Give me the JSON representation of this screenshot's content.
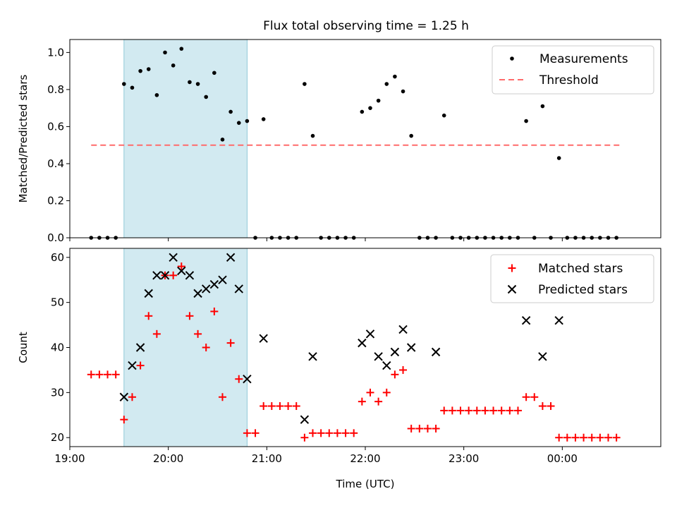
{
  "title": "Flux total observing time = 1.25 h",
  "colors": {
    "shade": "#add8e6",
    "threshold": "#ff6b6b",
    "matched": "#ff0000",
    "predicted": "#000000",
    "measurement": "#000000"
  },
  "chart_data": [
    {
      "type": "scatter",
      "ylabel": "Matched/Predicted stars",
      "xlim": [
        19.0,
        1.0
      ],
      "ylim": [
        0,
        1.07
      ],
      "yticks": [
        "0.0",
        "0.2",
        "0.4",
        "0.6",
        "0.8",
        "1.0"
      ],
      "ytick_values": [
        0,
        0.2,
        0.4,
        0.6,
        0.8,
        1.0
      ],
      "shaded_span": [
        "19:33",
        "20:48"
      ],
      "threshold": {
        "name": "Threshold",
        "value": 0.5,
        "x_range": [
          "19:13",
          "00:35"
        ]
      },
      "legend": {
        "placement": "upper-right",
        "entries": [
          "Measurements",
          "Threshold"
        ]
      },
      "series": [
        {
          "name": "Measurements",
          "x": [
            "19:13",
            "19:18",
            "19:23",
            "19:28",
            "19:33",
            "19:38",
            "19:43",
            "19:48",
            "19:53",
            "19:58",
            "20:03",
            "20:08",
            "20:13",
            "20:18",
            "20:23",
            "20:28",
            "20:33",
            "20:38",
            "20:43",
            "20:48",
            "20:53",
            "20:58",
            "21:03",
            "21:08",
            "21:13",
            "21:18",
            "21:23",
            "21:28",
            "21:33",
            "21:38",
            "21:43",
            "21:48",
            "21:53",
            "21:58",
            "22:03",
            "22:08",
            "22:13",
            "22:18",
            "22:23",
            "22:28",
            "22:33",
            "22:38",
            "22:43",
            "22:48",
            "22:53",
            "22:58",
            "23:03",
            "23:08",
            "23:13",
            "23:18",
            "23:23",
            "23:28",
            "23:33",
            "23:38",
            "23:43",
            "23:48",
            "23:53",
            "23:58",
            "00:03",
            "00:08",
            "00:13",
            "00:18",
            "00:23",
            "00:28",
            "00:33"
          ],
          "y": [
            0,
            0,
            0,
            0,
            0.83,
            0.81,
            0.9,
            0.91,
            0.77,
            1.0,
            0.93,
            1.02,
            0.84,
            0.83,
            0.76,
            0.89,
            0.53,
            0.68,
            0.62,
            0.63,
            0,
            0.64,
            0,
            0,
            0,
            0,
            0.83,
            0.55,
            0,
            0,
            0,
            0,
            0,
            0.68,
            0.7,
            0.74,
            0.83,
            0.87,
            0.79,
            0.55,
            0,
            0,
            0,
            0.66,
            0,
            0,
            0,
            0,
            0,
            0,
            0,
            0,
            0,
            0.63,
            0,
            0.71,
            0,
            0.43,
            0,
            0,
            0,
            0,
            0,
            0,
            0
          ]
        }
      ]
    },
    {
      "type": "scatter",
      "ylabel": "Count",
      "xlabel": "Time (UTC)",
      "xlim": [
        19.0,
        1.0
      ],
      "ylim": [
        18,
        62
      ],
      "yticks": [
        "20",
        "30",
        "40",
        "50",
        "60"
      ],
      "ytick_values": [
        20,
        30,
        40,
        50,
        60
      ],
      "xticks": [
        "19:00",
        "20:00",
        "21:00",
        "22:00",
        "23:00",
        "00:00"
      ],
      "shaded_span": [
        "19:33",
        "20:48"
      ],
      "legend": {
        "placement": "upper-right",
        "entries": [
          "Matched stars",
          "Predicted stars"
        ]
      },
      "series": [
        {
          "name": "Matched stars",
          "x": [
            "19:13",
            "19:18",
            "19:23",
            "19:28",
            "19:33",
            "19:38",
            "19:43",
            "19:48",
            "19:53",
            "19:58",
            "20:03",
            "20:08",
            "20:13",
            "20:18",
            "20:23",
            "20:28",
            "20:33",
            "20:38",
            "20:43",
            "20:48",
            "20:53",
            "20:58",
            "21:03",
            "21:08",
            "21:13",
            "21:18",
            "21:23",
            "21:28",
            "21:33",
            "21:38",
            "21:43",
            "21:48",
            "21:53",
            "21:58",
            "22:03",
            "22:08",
            "22:13",
            "22:18",
            "22:23",
            "22:28",
            "22:33",
            "22:38",
            "22:43",
            "22:48",
            "22:53",
            "22:58",
            "23:03",
            "23:08",
            "23:13",
            "23:18",
            "23:23",
            "23:28",
            "23:33",
            "23:38",
            "23:43",
            "23:48",
            "23:53",
            "23:58",
            "00:03",
            "00:08",
            "00:13",
            "00:18",
            "00:23",
            "00:28",
            "00:33"
          ],
          "y": [
            34,
            34,
            34,
            34,
            24,
            29,
            36,
            47,
            43,
            56,
            56,
            58,
            47,
            43,
            40,
            48,
            29,
            41,
            33,
            21,
            21,
            27,
            27,
            27,
            27,
            27,
            20,
            21,
            21,
            21,
            21,
            21,
            21,
            28,
            30,
            28,
            30,
            34,
            35,
            22,
            22,
            22,
            22,
            26,
            26,
            26,
            26,
            26,
            26,
            26,
            26,
            26,
            26,
            29,
            29,
            27,
            27,
            20,
            20,
            20,
            20,
            20,
            20,
            20,
            20
          ]
        },
        {
          "name": "Predicted stars",
          "x": [
            "19:33",
            "19:38",
            "19:43",
            "19:48",
            "19:53",
            "19:58",
            "20:03",
            "20:08",
            "20:13",
            "20:18",
            "20:23",
            "20:28",
            "20:33",
            "20:38",
            "20:43",
            "20:48",
            "20:58",
            "21:23",
            "21:28",
            "21:58",
            "22:03",
            "22:08",
            "22:13",
            "22:18",
            "22:23",
            "22:28",
            "22:43",
            "23:38",
            "23:48",
            "23:58"
          ],
          "y": [
            29,
            36,
            40,
            52,
            56,
            56,
            60,
            57,
            56,
            52,
            53,
            54,
            55,
            60,
            53,
            33,
            42,
            24,
            38,
            41,
            43,
            38,
            36,
            39,
            44,
            40,
            39,
            46,
            38,
            46
          ]
        }
      ]
    }
  ]
}
